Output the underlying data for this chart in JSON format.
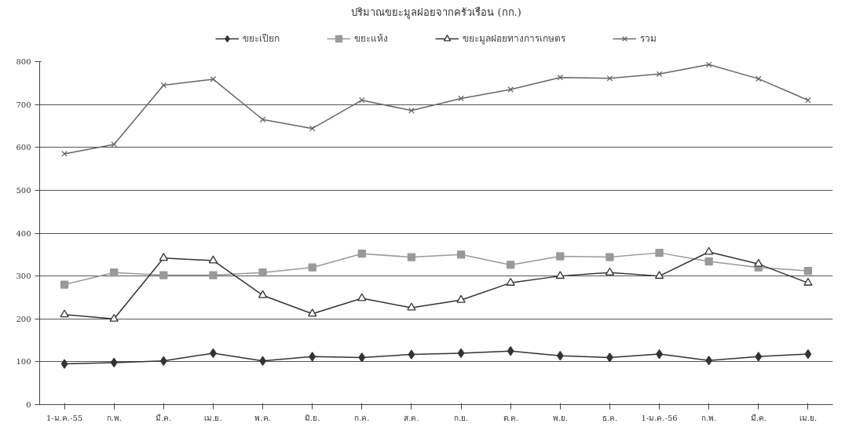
{
  "chart_data": {
    "type": "line",
    "title": "ปริมาณขยะมูลฝอยจากครัวเรือน (กก.)",
    "categories": [
      "1-ม.ค.-55",
      "ก.พ.",
      "มี.ค.",
      "เม.ย.",
      "พ.ค.",
      "มิ.ย.",
      "ก.ค.",
      "ส.ค.",
      "ก.ย.",
      "ต.ค.",
      "พ.ย.",
      "ธ.ค.",
      "1-ม.ค.-56",
      "ก.พ.",
      "มี.ค.",
      "เม.ย."
    ],
    "series": [
      {
        "name": "ขยะเปียก",
        "color": "#333333",
        "marker": "diamond",
        "values": [
          95,
          98,
          102,
          120,
          102,
          112,
          110,
          117,
          120,
          125,
          114,
          110,
          118,
          103,
          112,
          118
        ]
      },
      {
        "name": "ขยะแห้ง",
        "color": "#999999",
        "marker": "square",
        "values": [
          280,
          308,
          302,
          302,
          308,
          320,
          352,
          344,
          350,
          326,
          346,
          344,
          354,
          334,
          320,
          312
        ]
      },
      {
        "name": "ขยะมูลฝอยทางการเกษตร",
        "color": "#333333",
        "marker": "triangle",
        "values": [
          210,
          200,
          342,
          336,
          255,
          212,
          248,
          226,
          244,
          284,
          300,
          308,
          300,
          356,
          328,
          284
        ]
      },
      {
        "name": "รวม",
        "color": "#666666",
        "marker": "cross",
        "values": [
          585,
          607,
          745,
          759,
          665,
          644,
          710,
          686,
          714,
          735,
          763,
          761,
          771,
          793,
          760,
          710
        ]
      }
    ],
    "ylim": [
      0,
      800
    ],
    "yticks": [
      0,
      100,
      200,
      300,
      400,
      500,
      600,
      700,
      800
    ],
    "grid": "y",
    "legend": "top"
  }
}
